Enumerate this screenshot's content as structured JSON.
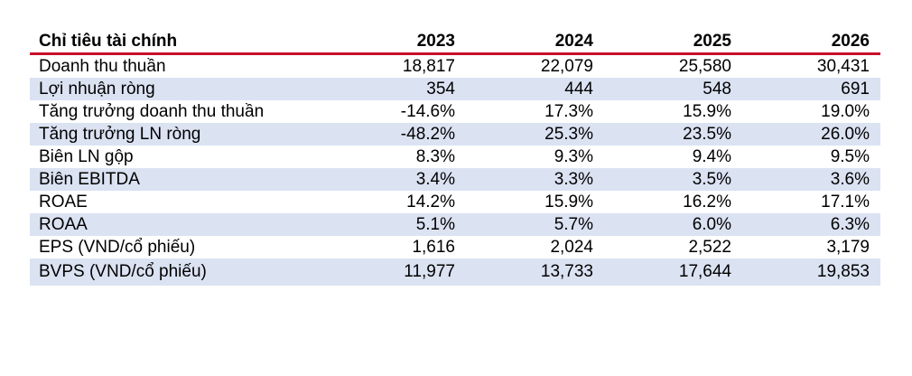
{
  "table": {
    "header_label": "Chỉ tiêu tài chính",
    "years": [
      "2023",
      "2024",
      "2025",
      "2026"
    ],
    "rows": [
      {
        "label": "Doanh thu thuần",
        "values": [
          "18,817",
          "22,079",
          "25,580",
          "30,431"
        ]
      },
      {
        "label": "Lợi nhuận ròng",
        "values": [
          "354",
          "444",
          "548",
          "691"
        ]
      },
      {
        "label": "Tăng trưởng doanh thu thuần",
        "values": [
          "-14.6%",
          "17.3%",
          "15.9%",
          "19.0%"
        ]
      },
      {
        "label": "Tăng trưởng LN ròng",
        "values": [
          "-48.2%",
          "25.3%",
          "23.5%",
          "26.0%"
        ]
      },
      {
        "label": "Biên LN gộp",
        "values": [
          "8.3%",
          "9.3%",
          "9.4%",
          "9.5%"
        ]
      },
      {
        "label": "Biên EBITDA",
        "values": [
          "3.4%",
          "3.3%",
          "3.5%",
          "3.6%"
        ]
      },
      {
        "label": "ROAE",
        "values": [
          "14.2%",
          "15.9%",
          "16.2%",
          "17.1%"
        ]
      },
      {
        "label": "ROAA",
        "values": [
          "5.1%",
          "5.7%",
          "6.0%",
          "6.3%"
        ]
      },
      {
        "label": "EPS (VND/cổ phiếu)",
        "values": [
          "1,616",
          "2,024",
          "2,522",
          "3,179"
        ]
      },
      {
        "label": "BVPS (VND/cổ phiếu)",
        "values": [
          "11,977",
          "13,733",
          "17,644",
          "19,853"
        ]
      }
    ]
  },
  "colors": {
    "header_rule": "#c8102e",
    "row_shade": "#dbe2f2"
  }
}
